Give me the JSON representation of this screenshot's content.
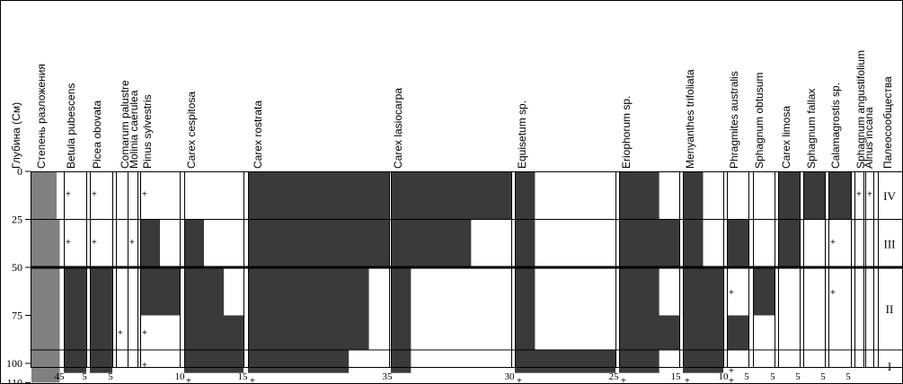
{
  "headers": [
    "Глубина (См)",
    "Степень разложения",
    "Betula pubescens",
    "Picea obovata",
    "Comarum palustre",
    "Molinia caerulea",
    "Pinus sylvestris",
    "Carex cespitosa",
    "Carex rostrata",
    "Carex lasiocarpa",
    "Equisetum sp.",
    "Eriophorum sp.",
    "Menyanthes trifoliata",
    "Phragmites australis",
    "Sphagnum obtusum",
    "Carex limosa",
    "Sphagnum fallax",
    "Calamagrostis sp.",
    "Sphagnum angustifolium",
    "Alnus incana",
    "Палеосообщества"
  ],
  "depth_ticks": [
    "0",
    "25",
    "50",
    "75",
    "100",
    "110"
  ],
  "zones": [
    "IV",
    "III",
    "II",
    "I"
  ],
  "bottom_ticks": [
    "45",
    "5",
    "5",
    "10",
    "15",
    "35",
    "30",
    "25",
    "15",
    "10",
    "5",
    "5",
    "5",
    "5",
    "5"
  ],
  "chart_data": {
    "type": "bar",
    "orientation": "horizontal-profile",
    "y_axis": "Глубина (См)",
    "ylim": [
      0,
      110
    ],
    "y_inverted": true,
    "zone_boundaries": [
      25,
      50,
      93
    ],
    "zones": [
      {
        "label": "IV",
        "from": 0,
        "to": 25
      },
      {
        "label": "III",
        "from": 25,
        "to": 50
      },
      {
        "label": "II",
        "from": 50,
        "to": 93
      },
      {
        "label": "I",
        "from": 93,
        "to": 110
      }
    ],
    "series": [
      {
        "name": "Степень разложения",
        "steps": [
          [
            0,
            25,
            40
          ],
          [
            25,
            50,
            45
          ],
          [
            50,
            75,
            45
          ],
          [
            75,
            93,
            45
          ],
          [
            93,
            110,
            45
          ]
        ],
        "scale_max": 50,
        "color": "#808080"
      },
      {
        "name": "Betula pubescens",
        "steps": [
          [
            50,
            105,
            5
          ]
        ],
        "traces": [
          12,
          37
        ],
        "scale_max": 5
      },
      {
        "name": "Picea obovata",
        "steps": [
          [
            50,
            105,
            5
          ]
        ],
        "traces": [
          12,
          37
        ],
        "scale_max": 5
      },
      {
        "name": "Comarum palustre",
        "steps": [],
        "traces": [
          84
        ],
        "scale_max": 5
      },
      {
        "name": "Molinia caerulea",
        "steps": [],
        "traces": [
          37
        ],
        "scale_max": 5
      },
      {
        "name": "Pinus sylvestris",
        "steps": [
          [
            25,
            50,
            5
          ],
          [
            50,
            75,
            10
          ]
        ],
        "traces": [
          12,
          84,
          101
        ],
        "scale_max": 10
      },
      {
        "name": "Carex cespitosa",
        "steps": [
          [
            25,
            50,
            5
          ],
          [
            50,
            75,
            10
          ],
          [
            75,
            105,
            15
          ]
        ],
        "traces": [
          109
        ],
        "scale_max": 15
      },
      {
        "name": "Carex rostrata",
        "steps": [
          [
            0,
            50,
            35
          ],
          [
            50,
            93,
            30
          ],
          [
            93,
            105,
            25
          ]
        ],
        "traces": [
          109
        ],
        "scale_max": 35
      },
      {
        "name": "Carex lasiocarpa",
        "steps": [
          [
            0,
            25,
            30
          ],
          [
            25,
            50,
            20
          ],
          [
            50,
            93,
            5
          ],
          [
            93,
            105,
            5
          ]
        ],
        "scale_max": 30
      },
      {
        "name": "Equisetum sp.",
        "steps": [
          [
            0,
            93,
            5
          ],
          [
            93,
            105,
            25
          ]
        ],
        "traces": [
          109
        ],
        "scale_max": 25
      },
      {
        "name": "Eriophorum sp.",
        "steps": [
          [
            0,
            25,
            10
          ],
          [
            25,
            50,
            15
          ],
          [
            50,
            75,
            10
          ],
          [
            75,
            93,
            15
          ],
          [
            93,
            105,
            10
          ]
        ],
        "traces": [
          109
        ],
        "scale_max": 15
      },
      {
        "name": "Menyanthes trifoliata",
        "steps": [
          [
            0,
            25,
            5
          ],
          [
            25,
            50,
            5
          ],
          [
            50,
            105,
            10
          ]
        ],
        "traces": [
          109
        ],
        "scale_max": 10
      },
      {
        "name": "Phragmites australis",
        "steps": [
          [
            25,
            50,
            5
          ],
          [
            75,
            93,
            5
          ]
        ],
        "traces": [
          63,
          104,
          109
        ],
        "scale_max": 5
      },
      {
        "name": "Sphagnum obtusum",
        "steps": [
          [
            50,
            75,
            5
          ]
        ],
        "scale_max": 5
      },
      {
        "name": "Carex limosa",
        "steps": [
          [
            0,
            50,
            5
          ]
        ],
        "scale_max": 5
      },
      {
        "name": "Sphagnum fallax",
        "steps": [
          [
            0,
            25,
            5
          ]
        ],
        "scale_max": 5
      },
      {
        "name": "Calamagrostis sp.",
        "steps": [
          [
            0,
            25,
            5
          ]
        ],
        "traces": [
          37,
          63
        ],
        "scale_max": 5
      },
      {
        "name": "Sphagnum angustifolium",
        "steps": [],
        "traces": [
          12
        ],
        "scale_max": 5
      },
      {
        "name": "Alnus incana",
        "steps": [],
        "traces": [
          12
        ],
        "scale_max": 5
      }
    ]
  },
  "colors": {
    "bar": "#3a3a3a",
    "degree": "#808080",
    "line": "#000000"
  }
}
